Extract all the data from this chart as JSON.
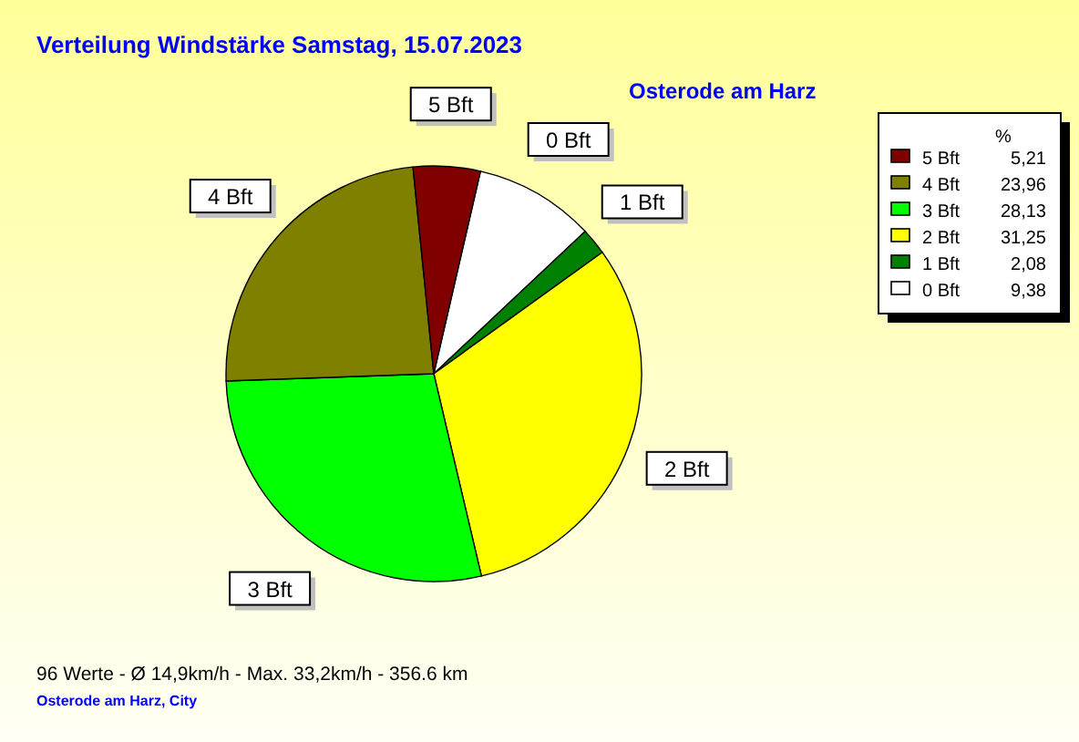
{
  "chart_data": {
    "type": "pie",
    "title": "Verteilung Windstärke  Samstag, 15.07.2023",
    "subtitle": "Osterode am Harz",
    "legend_title": "%",
    "categories": [
      "0 Bft",
      "1 Bft",
      "2 Bft",
      "3 Bft",
      "4 Bft",
      "5 Bft"
    ],
    "values": [
      9.38,
      2.08,
      31.25,
      28.13,
      23.96,
      5.21
    ],
    "value_labels": [
      "9,38",
      "2,08",
      "31,25",
      "28,13",
      "23,96",
      "5,21"
    ],
    "colors": [
      "#ffffff",
      "#008000",
      "#ffff00",
      "#00ff00",
      "#808000",
      "#800000"
    ],
    "legend": "top right",
    "annotations": [
      "96 Werte   -   Ø 14,9km/h  -  Max. 33,2km/h   -   356.6 km",
      "Osterode am Harz, City"
    ]
  }
}
